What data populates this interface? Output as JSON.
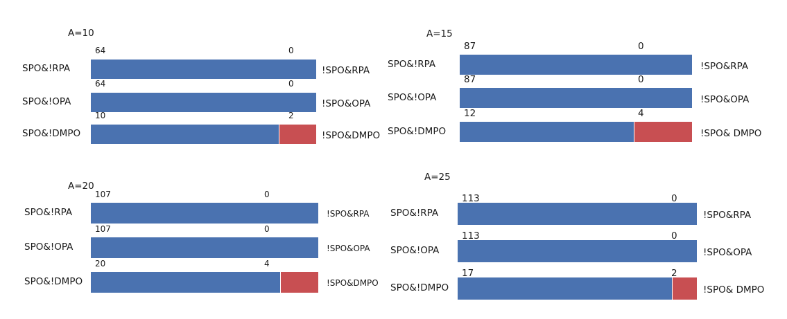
{
  "colors": {
    "blue": "#4a72b0",
    "red": "#c84f52"
  },
  "chart_data": [
    {
      "type": "bar",
      "stacked": true,
      "orientation": "horizontal",
      "title": "A=10",
      "categories": [
        "SPO&!RPA",
        "SPO&!OPA",
        "SPO&!DMPO"
      ],
      "right_labels": [
        "!SPO&RPA",
        "!SPO&OPA",
        "!SPO&DMPO"
      ],
      "series": [
        {
          "values": [
            64,
            64,
            10
          ],
          "color": "#4a72b0"
        },
        {
          "values": [
            0,
            0,
            2
          ],
          "color": "#c84f52"
        }
      ]
    },
    {
      "type": "bar",
      "stacked": true,
      "orientation": "horizontal",
      "title": "A=15",
      "categories": [
        "SPO&!RPA",
        "SPO&!OPA",
        "SPO&!DMPO"
      ],
      "right_labels": [
        "!SPO&RPA",
        "!SPO&OPA",
        "!SPO& DMPO"
      ],
      "series": [
        {
          "values": [
            87,
            87,
            12
          ],
          "color": "#4a72b0"
        },
        {
          "values": [
            0,
            0,
            4
          ],
          "color": "#c84f52"
        }
      ]
    },
    {
      "type": "bar",
      "stacked": true,
      "orientation": "horizontal",
      "title": "A=20",
      "categories": [
        "SPO&!RPA",
        "SPO&!OPA",
        "SPO&!DMPO"
      ],
      "right_labels": [
        "!SPO&RPA",
        "!SPO&OPA",
        "!SPO&DMPO"
      ],
      "series": [
        {
          "values": [
            107,
            107,
            20
          ],
          "color": "#4a72b0"
        },
        {
          "values": [
            0,
            0,
            4
          ],
          "color": "#c84f52"
        }
      ]
    },
    {
      "type": "bar",
      "stacked": true,
      "orientation": "horizontal",
      "title": "A=25",
      "categories": [
        "SPO&!RPA",
        "SPO&!OPA",
        "SPO&!DMPO"
      ],
      "right_labels": [
        "!SPO&RPA",
        "!SPO&OPA",
        "!SPO& DMPO"
      ],
      "series": [
        {
          "values": [
            113,
            113,
            17
          ],
          "color": "#4a72b0"
        },
        {
          "values": [
            0,
            0,
            2
          ],
          "color": "#c84f52"
        }
      ]
    }
  ]
}
